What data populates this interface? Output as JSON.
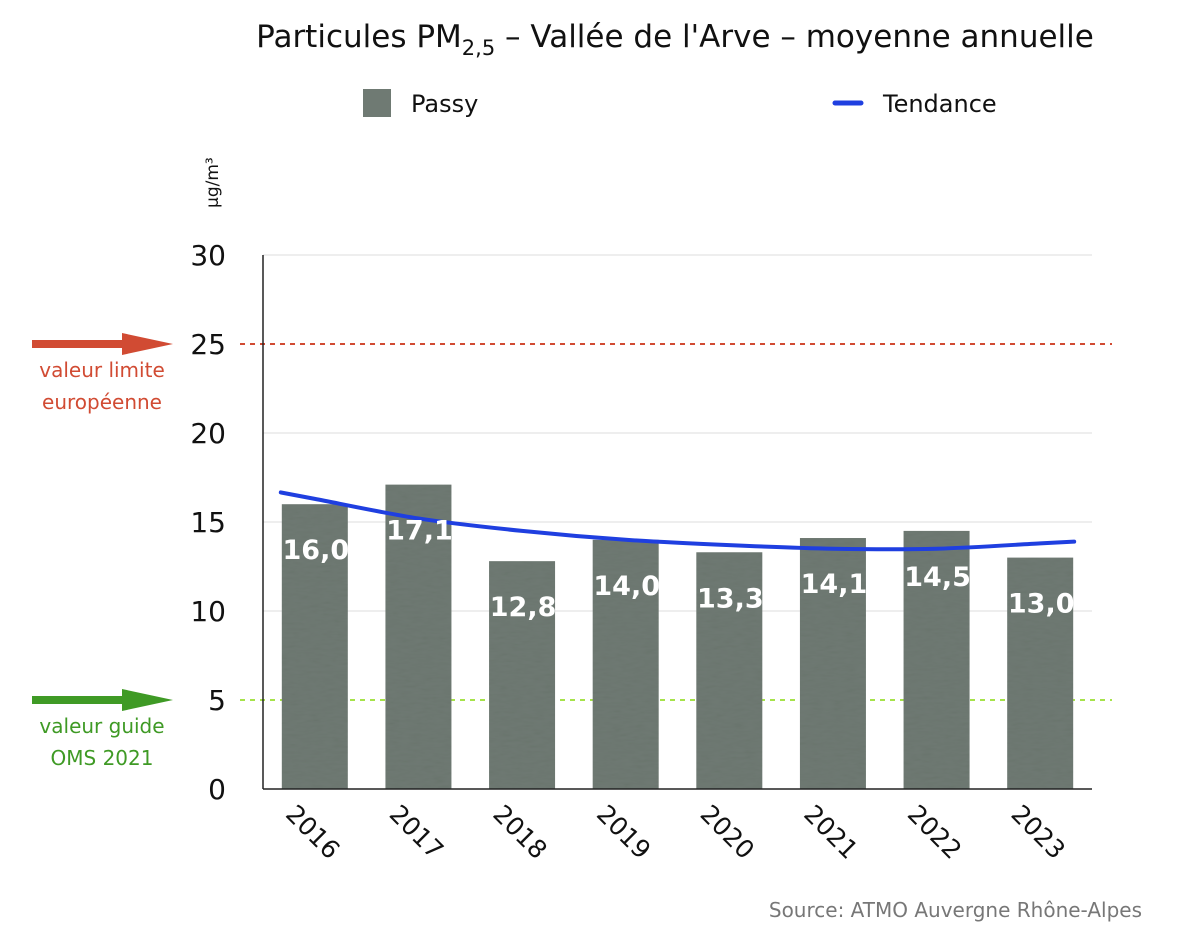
{
  "chart_data": {
    "type": "bar",
    "title": {
      "main": "Particules PM",
      "sub": "2,5",
      "rest": " – Vallée de l'Arve – moyenne annuelle"
    },
    "ylabel": "µg/m³",
    "ylim": [
      0,
      30
    ],
    "yticks": [
      "0",
      "5",
      "10",
      "15",
      "20",
      "25",
      "30"
    ],
    "categories": [
      "2016",
      "2017",
      "2018",
      "2019",
      "2020",
      "2021",
      "2022",
      "2023"
    ],
    "series": [
      {
        "name": "Passy",
        "color": "#6f7a73",
        "values": [
          16.0,
          17.1,
          12.8,
          14.0,
          13.3,
          14.1,
          14.5,
          13.0
        ],
        "labels": [
          "16,0",
          "17,1",
          "12,8",
          "14,0",
          "13,3",
          "14,1",
          "14,5",
          "13,0"
        ]
      }
    ],
    "trend": {
      "name": "Tendance",
      "color": "#1f3fe0",
      "values": [
        16.3,
        15.2,
        14.5,
        14.0,
        13.7,
        13.5,
        13.5,
        13.8
      ]
    },
    "reference_lines": [
      {
        "value": 25,
        "label_lines": [
          "valeur limite",
          "européenne"
        ],
        "color": "#d14b33"
      },
      {
        "value": 5,
        "label_lines": [
          "valeur guide",
          "OMS 2021"
        ],
        "color": "#3f9a25",
        "line_color": "#a6e34a"
      }
    ],
    "grid": true,
    "legend_position": "top",
    "source": "Source: ATMO Auvergne Rhône-Alpes"
  }
}
